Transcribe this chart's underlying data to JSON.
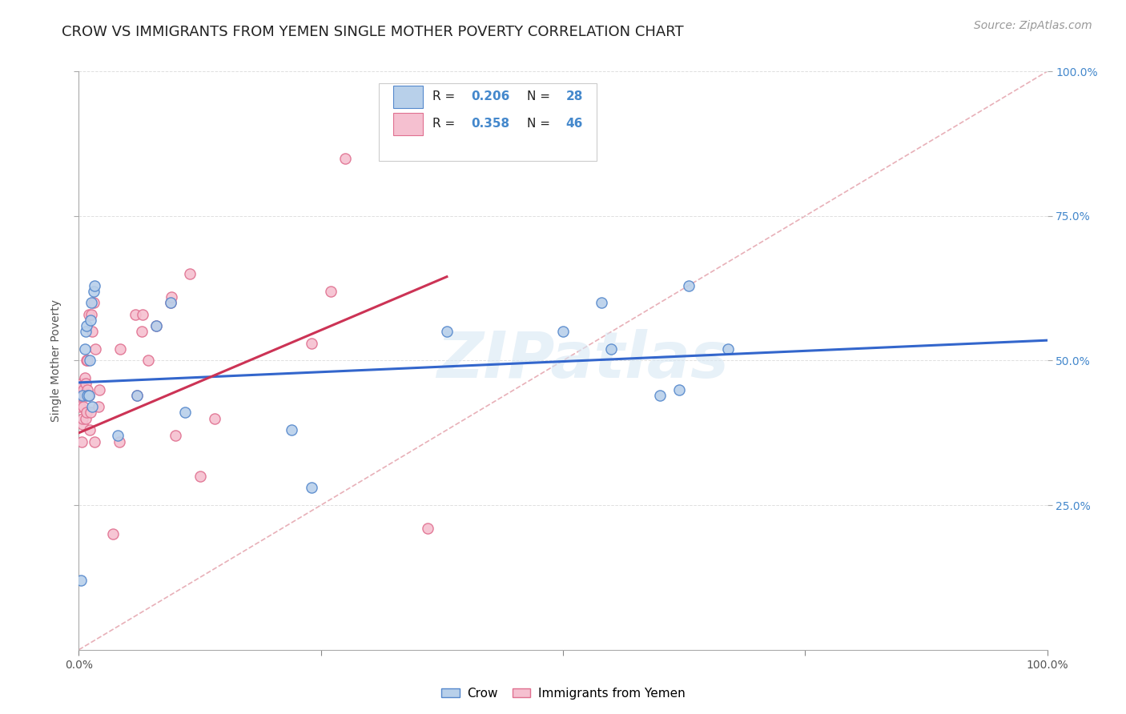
{
  "title": "CROW VS IMMIGRANTS FROM YEMEN SINGLE MOTHER POVERTY CORRELATION CHART",
  "source": "Source: ZipAtlas.com",
  "ylabel": "Single Mother Poverty",
  "watermark": "ZIPatlas",
  "xlim": [
    0,
    1.0
  ],
  "ylim": [
    0,
    1.0
  ],
  "xticks": [
    0.0,
    0.25,
    0.5,
    0.75,
    1.0
  ],
  "yticks": [
    0.25,
    0.5,
    0.75,
    1.0
  ],
  "xtick_labels": [
    "0.0%",
    "",
    "",
    "",
    "100.0%"
  ],
  "ytick_labels": [
    "25.0%",
    "50.0%",
    "75.0%",
    "100.0%"
  ],
  "crow_color": "#b8d0ea",
  "crow_edge_color": "#5588cc",
  "yemen_color": "#f5c0d0",
  "yemen_edge_color": "#e07090",
  "trend_blue": "#3366cc",
  "trend_pink": "#cc3355",
  "diag_color": "#e8b0b8",
  "crow_scatter_x": [
    0.002,
    0.004,
    0.006,
    0.007,
    0.008,
    0.009,
    0.01,
    0.011,
    0.012,
    0.013,
    0.014,
    0.015,
    0.016,
    0.04,
    0.06,
    0.08,
    0.095,
    0.11,
    0.22,
    0.24,
    0.38,
    0.5,
    0.54,
    0.55,
    0.6,
    0.62,
    0.63,
    0.67
  ],
  "crow_scatter_y": [
    0.12,
    0.44,
    0.52,
    0.55,
    0.56,
    0.44,
    0.44,
    0.5,
    0.57,
    0.6,
    0.42,
    0.62,
    0.63,
    0.37,
    0.44,
    0.56,
    0.6,
    0.41,
    0.38,
    0.28,
    0.55,
    0.55,
    0.6,
    0.52,
    0.44,
    0.45,
    0.63,
    0.52
  ],
  "yemen_scatter_x": [
    0.001,
    0.002,
    0.003,
    0.003,
    0.004,
    0.004,
    0.005,
    0.005,
    0.006,
    0.006,
    0.007,
    0.007,
    0.008,
    0.008,
    0.009,
    0.009,
    0.01,
    0.01,
    0.011,
    0.012,
    0.013,
    0.014,
    0.015,
    0.016,
    0.017,
    0.02,
    0.021,
    0.035,
    0.042,
    0.043,
    0.058,
    0.06,
    0.065,
    0.066,
    0.072,
    0.08,
    0.095,
    0.096,
    0.1,
    0.115,
    0.125,
    0.14,
    0.24,
    0.26,
    0.275,
    0.36
  ],
  "yemen_scatter_y": [
    0.42,
    0.44,
    0.46,
    0.36,
    0.39,
    0.4,
    0.45,
    0.42,
    0.47,
    0.44,
    0.46,
    0.4,
    0.41,
    0.5,
    0.45,
    0.5,
    0.58,
    0.44,
    0.38,
    0.41,
    0.58,
    0.55,
    0.6,
    0.36,
    0.52,
    0.42,
    0.45,
    0.2,
    0.36,
    0.52,
    0.58,
    0.44,
    0.55,
    0.58,
    0.5,
    0.56,
    0.6,
    0.61,
    0.37,
    0.65,
    0.3,
    0.4,
    0.53,
    0.62,
    0.85,
    0.21
  ],
  "blue_trend_x": [
    0.0,
    1.0
  ],
  "blue_trend_y": [
    0.462,
    0.535
  ],
  "pink_trend_x": [
    0.0,
    0.38
  ],
  "pink_trend_y": [
    0.375,
    0.645
  ],
  "title_fontsize": 13,
  "axis_label_fontsize": 10,
  "tick_fontsize": 10,
  "source_fontsize": 10,
  "scatter_size": 90,
  "background_color": "#ffffff",
  "grid_color": "#e0e0e0",
  "right_ytick_color": "#4488cc"
}
